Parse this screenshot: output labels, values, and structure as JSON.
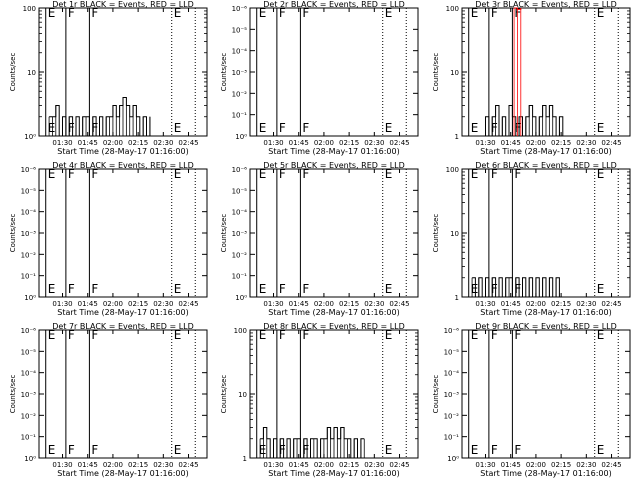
{
  "figure": {
    "xlabel": "Start Time (28-May-17 01:16:00)",
    "ylabel": "Counts/sec",
    "x_tick_labels": [
      "01:30",
      "01:45",
      "02:00",
      "02:15",
      "02:30",
      "02:45"
    ],
    "colors": {
      "events": "#000000",
      "lld": "#ff0000",
      "axes": "#000000"
    }
  },
  "chart_data": [
    {
      "type": "line",
      "title": "Det 1r BLACK = Events, RED = LLD",
      "yscale": "log",
      "ylim": [
        1,
        100
      ],
      "y_tick_labels": [
        "10⁰",
        "10",
        "100"
      ],
      "xlim": [
        "01:16",
        "02:56"
      ],
      "markers": [
        {
          "label": "E",
          "x": "01:20",
          "style": "solid"
        },
        {
          "label": "F",
          "x": "01:32",
          "style": "solid"
        },
        {
          "label": "F",
          "x": "01:46",
          "style": "solid"
        },
        {
          "label": "E",
          "x": "02:35",
          "style": "dotted"
        },
        {
          "label": "",
          "x": "02:49",
          "style": "dotted"
        }
      ],
      "series": [
        {
          "color": "#000000",
          "x": [
            "01:22",
            "01:24",
            "01:26",
            "01:28",
            "01:30",
            "01:32",
            "01:34",
            "01:36",
            "01:38",
            "01:40",
            "01:42",
            "01:44",
            "01:46",
            "01:48",
            "01:50",
            "01:52",
            "01:54",
            "01:56",
            "01:58",
            "02:00",
            "02:02",
            "02:04",
            "02:06",
            "02:08",
            "02:10",
            "02:12",
            "02:14",
            "02:16",
            "02:18",
            "02:20",
            "02:22"
          ],
          "y": [
            2,
            2,
            3,
            1,
            2,
            1,
            2,
            1,
            2,
            1,
            2,
            2,
            1,
            2,
            1,
            2,
            1,
            2,
            2,
            3,
            2,
            3,
            4,
            3,
            2,
            3,
            2,
            1,
            2,
            1,
            2
          ]
        }
      ]
    },
    {
      "type": "line",
      "title": "Det 2r BLACK = Events, RED = LLD",
      "yscale": "log",
      "ylim": [
        1,
        1e-06
      ],
      "y_tick_labels": [
        "10⁰",
        "10⁻¹",
        "10⁻²",
        "10⁻³",
        "10⁻⁴",
        "10⁻⁵",
        "10⁻⁶"
      ],
      "xlim": [
        "01:16",
        "02:56"
      ],
      "markers": [
        {
          "label": "E",
          "x": "01:20",
          "style": "solid"
        },
        {
          "label": "F",
          "x": "01:32",
          "style": "solid"
        },
        {
          "label": "F",
          "x": "01:46",
          "style": "solid"
        },
        {
          "label": "E",
          "x": "02:35",
          "style": "dotted"
        },
        {
          "label": "",
          "x": "02:49",
          "style": "dotted"
        }
      ],
      "series": []
    },
    {
      "type": "line",
      "title": "Det 3r BLACK = Events, RED = LLD",
      "yscale": "log",
      "ylim": [
        1,
        100
      ],
      "y_tick_labels": [
        "1",
        "10",
        "100"
      ],
      "xlim": [
        "01:16",
        "02:56"
      ],
      "markers": [
        {
          "label": "E",
          "x": "01:20",
          "style": "solid"
        },
        {
          "label": "F",
          "x": "01:32",
          "style": "solid"
        },
        {
          "label": "F",
          "x": "01:46",
          "style": "solid"
        },
        {
          "label": "E",
          "x": "02:35",
          "style": "dotted"
        },
        {
          "label": "",
          "x": "02:49",
          "style": "dotted"
        }
      ],
      "series": [
        {
          "color": "#000000",
          "x": [
            "01:28",
            "01:30",
            "01:32",
            "01:34",
            "01:36",
            "01:38",
            "01:40",
            "01:42",
            "01:44",
            "01:46",
            "01:48",
            "01:50",
            "01:52",
            "01:54",
            "01:56",
            "01:58",
            "02:00",
            "02:02",
            "02:04",
            "02:06",
            "02:08",
            "02:10",
            "02:12",
            "02:14",
            "02:16",
            "02:18"
          ],
          "y": [
            1,
            2,
            1,
            2,
            3,
            1,
            2,
            1,
            3,
            2,
            1,
            2,
            1,
            2,
            3,
            2,
            1,
            2,
            3,
            2,
            3,
            2,
            1,
            2,
            1,
            1
          ]
        },
        {
          "color": "#ff0000",
          "x": [
            "01:47",
            "01:49",
            "01:51"
          ],
          "y": [
            100,
            95,
            100
          ]
        }
      ]
    },
    {
      "type": "line",
      "title": "Det 4r BLACK = Events, RED = LLD",
      "yscale": "log",
      "ylim": [
        1,
        1e-06
      ],
      "y_tick_labels": [
        "10⁰",
        "10⁻¹",
        "10⁻²",
        "10⁻³",
        "10⁻⁴",
        "10⁻⁵",
        "10⁻⁶"
      ],
      "xlim": [
        "01:16",
        "02:56"
      ],
      "markers": [
        {
          "label": "E",
          "x": "01:20",
          "style": "solid"
        },
        {
          "label": "F",
          "x": "01:32",
          "style": "solid"
        },
        {
          "label": "F",
          "x": "01:46",
          "style": "solid"
        },
        {
          "label": "E",
          "x": "02:35",
          "style": "dotted"
        },
        {
          "label": "",
          "x": "02:49",
          "style": "dotted"
        }
      ],
      "series": []
    },
    {
      "type": "line",
      "title": "Det 5r BLACK = Events, RED = LLD",
      "yscale": "log",
      "ylim": [
        1,
        1e-06
      ],
      "y_tick_labels": [
        "10⁰",
        "10⁻¹",
        "10⁻²",
        "10⁻³",
        "10⁻⁴",
        "10⁻⁵",
        "10⁻⁶"
      ],
      "xlim": [
        "01:16",
        "02:56"
      ],
      "markers": [
        {
          "label": "E",
          "x": "01:20",
          "style": "solid"
        },
        {
          "label": "F",
          "x": "01:32",
          "style": "solid"
        },
        {
          "label": "F",
          "x": "01:46",
          "style": "solid"
        },
        {
          "label": "E",
          "x": "02:35",
          "style": "dotted"
        },
        {
          "label": "",
          "x": "02:49",
          "style": "dotted"
        }
      ],
      "series": []
    },
    {
      "type": "line",
      "title": "Det 6r BLACK = Events, RED = LLD",
      "yscale": "log",
      "ylim": [
        1,
        100
      ],
      "y_tick_labels": [
        "1",
        "10",
        "100"
      ],
      "xlim": [
        "01:16",
        "02:56"
      ],
      "markers": [
        {
          "label": "E",
          "x": "01:20",
          "style": "solid"
        },
        {
          "label": "F",
          "x": "01:32",
          "style": "solid"
        },
        {
          "label": "F",
          "x": "01:46",
          "style": "solid"
        },
        {
          "label": "E",
          "x": "02:35",
          "style": "dotted"
        },
        {
          "label": "",
          "x": "02:49",
          "style": "dotted"
        }
      ],
      "series": [
        {
          "color": "#000000",
          "x": [
            "01:22",
            "01:24",
            "01:26",
            "01:28",
            "01:30",
            "01:32",
            "01:34",
            "01:36",
            "01:38",
            "01:40",
            "01:42",
            "01:44",
            "01:46",
            "01:48",
            "01:50",
            "01:52",
            "01:54",
            "01:56",
            "01:58",
            "02:00",
            "02:02",
            "02:04",
            "02:06",
            "02:08",
            "02:10",
            "02:12",
            "02:14",
            "02:16",
            "02:18"
          ],
          "y": [
            2,
            1,
            2,
            1,
            2,
            1,
            2,
            1,
            2,
            1,
            2,
            2,
            1,
            2,
            1,
            2,
            1,
            2,
            1,
            2,
            1,
            2,
            1,
            2,
            1,
            2,
            1,
            1,
            1
          ]
        }
      ]
    },
    {
      "type": "line",
      "title": "Det 7r BLACK = Events, RED = LLD",
      "yscale": "log",
      "ylim": [
        1,
        1e-06
      ],
      "y_tick_labels": [
        "10⁰",
        "10⁻¹",
        "10⁻²",
        "10⁻³",
        "10⁻⁴",
        "10⁻⁵",
        "10⁻⁶"
      ],
      "xlim": [
        "01:16",
        "02:56"
      ],
      "markers": [
        {
          "label": "E",
          "x": "01:20",
          "style": "solid"
        },
        {
          "label": "F",
          "x": "01:32",
          "style": "solid"
        },
        {
          "label": "F",
          "x": "01:46",
          "style": "solid"
        },
        {
          "label": "E",
          "x": "02:35",
          "style": "dotted"
        },
        {
          "label": "",
          "x": "02:49",
          "style": "dotted"
        }
      ],
      "series": []
    },
    {
      "type": "line",
      "title": "Det 8r BLACK = Events, RED = LLD",
      "yscale": "log",
      "ylim": [
        1,
        100
      ],
      "y_tick_labels": [
        "1",
        "10",
        "100"
      ],
      "xlim": [
        "01:16",
        "02:56"
      ],
      "markers": [
        {
          "label": "E",
          "x": "01:20",
          "style": "solid"
        },
        {
          "label": "F",
          "x": "01:32",
          "style": "solid"
        },
        {
          "label": "F",
          "x": "01:46",
          "style": "solid"
        },
        {
          "label": "E",
          "x": "02:35",
          "style": "dotted"
        },
        {
          "label": "",
          "x": "02:49",
          "style": "dotted"
        }
      ],
      "series": [
        {
          "color": "#000000",
          "x": [
            "01:22",
            "01:24",
            "01:26",
            "01:28",
            "01:30",
            "01:32",
            "01:34",
            "01:36",
            "01:38",
            "01:40",
            "01:42",
            "01:44",
            "01:46",
            "01:48",
            "01:50",
            "01:52",
            "01:54",
            "01:56",
            "01:58",
            "02:00",
            "02:02",
            "02:04",
            "02:06",
            "02:08",
            "02:10",
            "02:12",
            "02:14",
            "02:16",
            "02:18",
            "02:20",
            "02:22",
            "02:24"
          ],
          "y": [
            2,
            3,
            2,
            1,
            2,
            1,
            2,
            1,
            2,
            1,
            2,
            2,
            1,
            2,
            1,
            2,
            2,
            1,
            2,
            2,
            3,
            2,
            3,
            2,
            3,
            2,
            2,
            1,
            2,
            1,
            2,
            2
          ]
        }
      ]
    },
    {
      "type": "line",
      "title": "Det 9r BLACK = Events, RED = LLD",
      "yscale": "log",
      "ylim": [
        1,
        1e-06
      ],
      "y_tick_labels": [
        "10⁰",
        "10⁻¹",
        "10⁻²",
        "10⁻³",
        "10⁻⁴",
        "10⁻⁵",
        "10⁻⁶"
      ],
      "xlim": [
        "01:16",
        "02:56"
      ],
      "markers": [
        {
          "label": "E",
          "x": "01:20",
          "style": "solid"
        },
        {
          "label": "F",
          "x": "01:32",
          "style": "solid"
        },
        {
          "label": "F",
          "x": "01:46",
          "style": "solid"
        },
        {
          "label": "E",
          "x": "02:35",
          "style": "dotted"
        },
        {
          "label": "",
          "x": "02:49",
          "style": "dotted"
        }
      ],
      "series": []
    }
  ]
}
